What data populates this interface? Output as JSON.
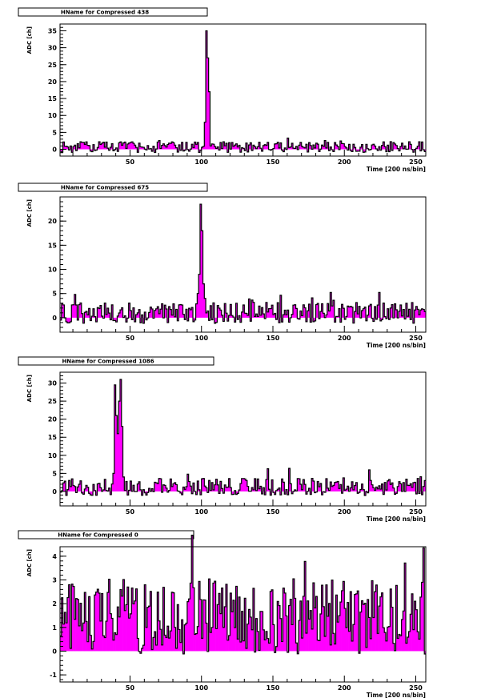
{
  "chart_data": [
    {
      "type": "bar",
      "title": "HName for Compressed 438",
      "xlabel": "Time [200 ns/bin]",
      "ylabel": "ADC [ch]",
      "xlim": [
        1,
        256
      ],
      "ylim": [
        -2,
        37
      ],
      "xticks": [
        50,
        100,
        150,
        200,
        250
      ],
      "yticks": [
        0,
        5,
        10,
        15,
        20,
        25,
        30,
        35
      ],
      "peak": {
        "bins": [
          102,
          103,
          104,
          105,
          106
        ],
        "values": [
          8,
          35,
          27,
          17,
          1
        ]
      },
      "noise": {
        "mean": 0.5,
        "amp": 1.6
      },
      "fill_color": "#ff00ff",
      "grid": false
    },
    {
      "type": "bar",
      "title": "HName for Compressed 675",
      "xlabel": "Time [200 ns/bin]",
      "ylabel": "ADC [ch]",
      "xlim": [
        1,
        256
      ],
      "ylim": [
        -3,
        25
      ],
      "xticks": [
        50,
        100,
        150,
        200,
        250
      ],
      "yticks": [
        0,
        5,
        10,
        15,
        20
      ],
      "peak": {
        "bins": [
          97,
          98,
          99,
          100,
          101,
          102,
          103
        ],
        "values": [
          5,
          9,
          23.5,
          18,
          7,
          4,
          1
        ]
      },
      "noise": {
        "mean": 0.8,
        "amp": 2.2
      },
      "fill_color": "#ff00ff",
      "grid": false
    },
    {
      "type": "bar",
      "title": "HName for Compressed 1086",
      "xlabel": "Time [200 ns/bin]",
      "ylabel": "ADC [ch]",
      "xlim": [
        1,
        256
      ],
      "ylim": [
        -4,
        33
      ],
      "xticks": [
        50,
        100,
        150,
        200,
        250
      ],
      "yticks": [
        0,
        5,
        10,
        15,
        20,
        25,
        30
      ],
      "peak": {
        "bins": [
          38,
          39,
          40,
          41,
          42,
          43,
          44,
          45
        ],
        "values": [
          5,
          29.5,
          21,
          16,
          25,
          31,
          18,
          4
        ]
      },
      "noise": {
        "mean": 1.0,
        "amp": 2.4
      },
      "fill_color": "#ff00ff",
      "grid": false
    },
    {
      "type": "bar",
      "title": "HName for Compressed 0",
      "xlabel": "Time [200 ns/bin]",
      "ylabel": "ADC [ch]",
      "xlim": [
        1,
        256
      ],
      "ylim": [
        -1.3,
        4.4
      ],
      "xticks": [
        50,
        100,
        150,
        200,
        250
      ],
      "yticks": [
        -1,
        0,
        1,
        2,
        3,
        4
      ],
      "peak": {
        "bins": [],
        "values": []
      },
      "noise": {
        "mean": 1.3,
        "amp": 1.6
      },
      "fill_color": "#ff00ff",
      "grid": false
    }
  ]
}
